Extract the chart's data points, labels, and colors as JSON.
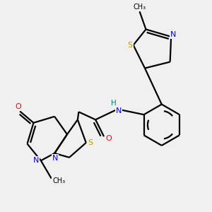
{
  "background_color": "#f0f0f0",
  "atom_colors": {
    "S": "#b8a000",
    "N": "#0000ff",
    "O": "#ff0000",
    "H": "#008080",
    "C": "#000000"
  },
  "bond_color": "#000000",
  "lw": 1.6
}
